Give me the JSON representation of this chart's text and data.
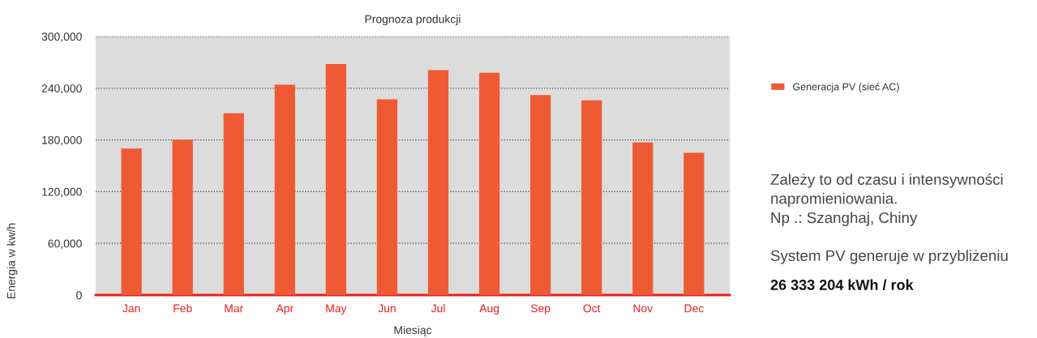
{
  "chart_data": {
    "type": "bar",
    "title": "Prognoza produkcji",
    "xlabel": "Miesiąc",
    "ylabel": "Energia w kw/h",
    "categories": [
      "Jan",
      "Feb",
      "Mar",
      "Apr",
      "May",
      "Jun",
      "Jul",
      "Aug",
      "Sep",
      "Oct",
      "Nov",
      "Dec"
    ],
    "series": [
      {
        "name": "Generacja PV (sieć AC)",
        "color": "#ee5a33",
        "values": [
          170000,
          180000,
          211000,
          244000,
          268000,
          227000,
          261000,
          258000,
          232000,
          226000,
          177000,
          165000
        ]
      }
    ],
    "ylim": [
      0,
      300000
    ],
    "yticks": [
      {
        "value": 0,
        "label": "0"
      },
      {
        "value": 60000,
        "label": "60,000"
      },
      {
        "value": 120000,
        "label": "120,000"
      },
      {
        "value": 180000,
        "label": "180,000"
      },
      {
        "value": 240000,
        "label": "240,000"
      },
      {
        "value": 300000,
        "label": "300,000"
      }
    ],
    "grid": "y",
    "legend": "right",
    "annotations": [
      "Zależy to od czasu i intensywności\nnapromieniowania.\nNp .: Szanghaj, Chiny",
      "System PV generuje w przybliżeniu",
      "26 333 204 kWh / rok"
    ]
  }
}
